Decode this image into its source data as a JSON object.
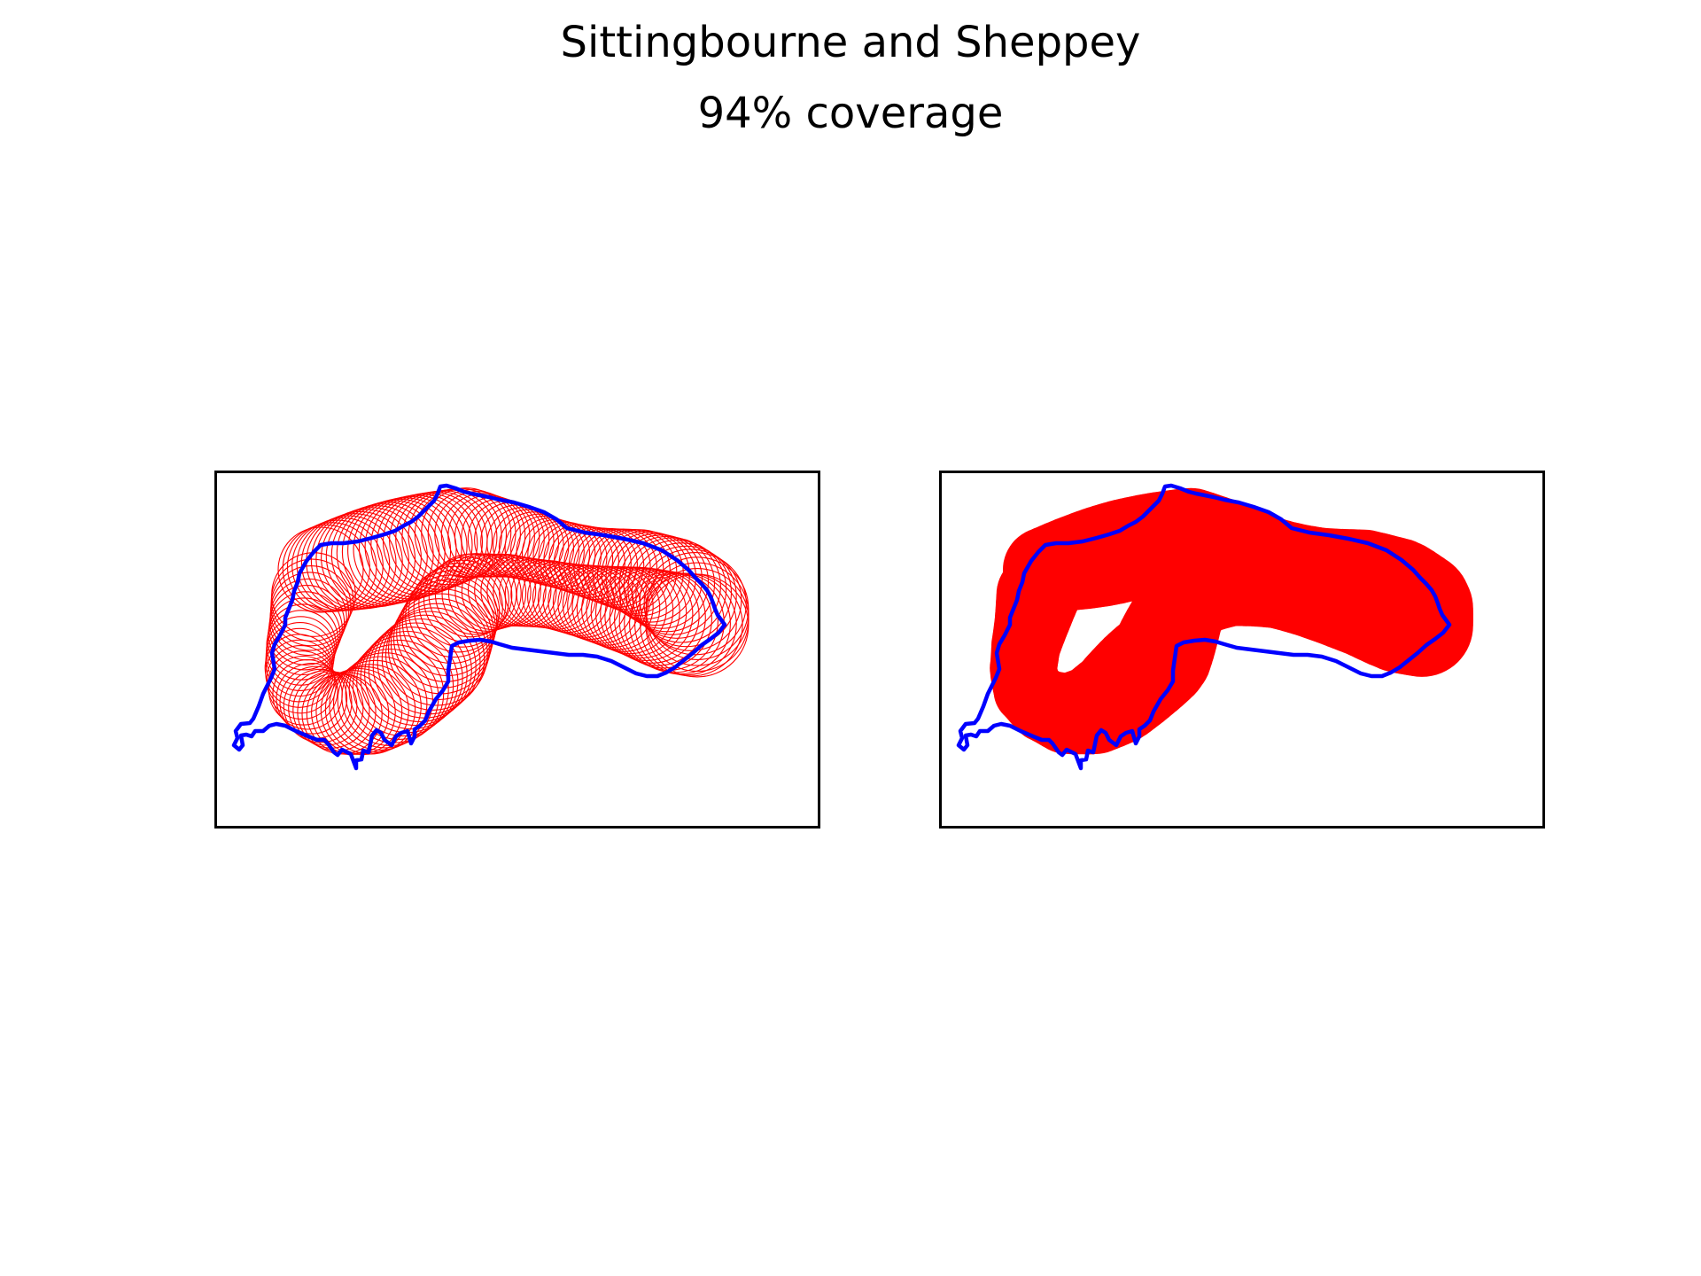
{
  "title": "Sittingbourne and Sheppey",
  "subtitle": "94% coverage",
  "colors": {
    "boundary": "#0000ff",
    "coverage": "#ff0000",
    "frame": "#000000",
    "background": "#ffffff"
  },
  "panels": [
    {
      "id": "left",
      "style": "circle-outlines"
    },
    {
      "id": "right",
      "style": "filled-union"
    }
  ]
}
